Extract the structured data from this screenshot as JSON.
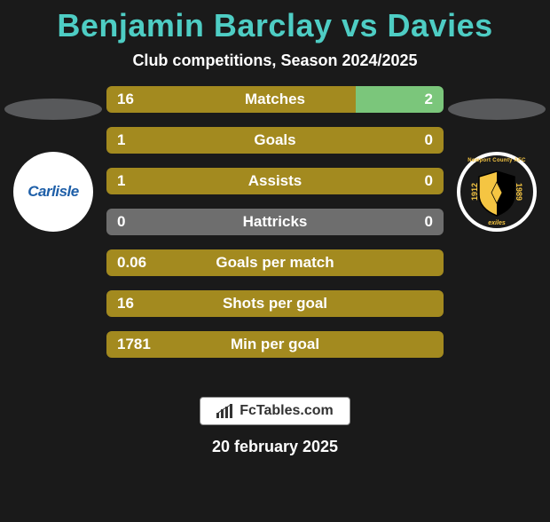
{
  "title": "Benjamin Barclay vs Davies",
  "subtitle": "Club competitions, Season 2024/2025",
  "colors": {
    "title": "#4ecdc4",
    "background": "#1a1a1a",
    "ellipse": "#58595b",
    "text": "#ffffff"
  },
  "player_left": {
    "team": "Carlisle",
    "badge_bg": "#ffffff",
    "badge_text_color": "#1e5fa8"
  },
  "player_right": {
    "team": "Newport County AFC",
    "badge_border": "#ffffff",
    "badge_accent": "#f5c542",
    "year_left": "1912",
    "year_right": "1989",
    "subtitle": "exiles"
  },
  "stats": [
    {
      "label": "Matches",
      "left_value": "16",
      "right_value": "2",
      "left_color": "#a38a1f",
      "right_color": "#7bc67b",
      "left_pct": 74,
      "right_pct": 26
    },
    {
      "label": "Goals",
      "left_value": "1",
      "right_value": "0",
      "left_color": "#a38a1f",
      "right_color": "#a38a1f",
      "left_pct": 90,
      "right_pct": 10
    },
    {
      "label": "Assists",
      "left_value": "1",
      "right_value": "0",
      "left_color": "#a38a1f",
      "right_color": "#a38a1f",
      "left_pct": 90,
      "right_pct": 10
    },
    {
      "label": "Hattricks",
      "left_value": "0",
      "right_value": "0",
      "left_color": "#6e6e6e",
      "right_color": "#6e6e6e",
      "left_pct": 50,
      "right_pct": 50
    },
    {
      "label": "Goals per match",
      "left_value": "0.06",
      "right_value": "",
      "left_color": "#a38a1f",
      "right_color": "#a38a1f",
      "left_pct": 90,
      "right_pct": 10
    },
    {
      "label": "Shots per goal",
      "left_value": "16",
      "right_value": "",
      "left_color": "#a38a1f",
      "right_color": "#a38a1f",
      "left_pct": 90,
      "right_pct": 10
    },
    {
      "label": "Min per goal",
      "left_value": "1781",
      "right_value": "",
      "left_color": "#a38a1f",
      "right_color": "#a38a1f",
      "left_pct": 90,
      "right_pct": 10
    }
  ],
  "footer_logo": "FcTables.com",
  "date": "20 february 2025"
}
